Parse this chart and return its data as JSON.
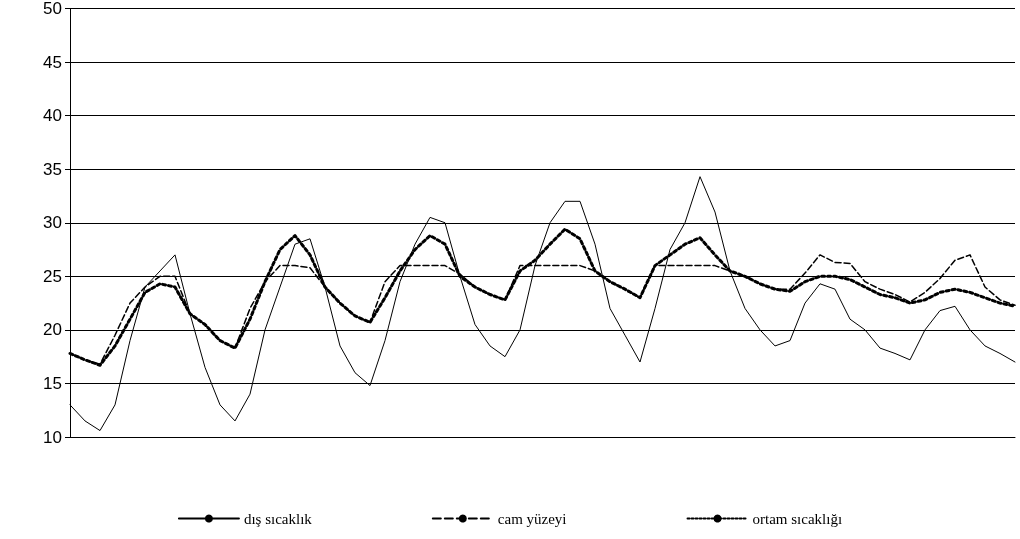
{
  "chart_data": {
    "type": "line",
    "categories": [
      null,
      null,
      null,
      null,
      null,
      null,
      null,
      null,
      null,
      null,
      null,
      null,
      null,
      null,
      null,
      null,
      null,
      null,
      null,
      null,
      null,
      null,
      null,
      null,
      null,
      null,
      null,
      null,
      null,
      null,
      null,
      null,
      null,
      null,
      null,
      null,
      null,
      null,
      null,
      null,
      null,
      null,
      null,
      null,
      null,
      null,
      null,
      null,
      null,
      null,
      null,
      null,
      null,
      null,
      null,
      null,
      null,
      null,
      null,
      null,
      null,
      null,
      null,
      null
    ],
    "ylim": [
      10,
      50
    ],
    "yticks": [
      10,
      15,
      20,
      25,
      30,
      35,
      40,
      45,
      50
    ],
    "grid": "y",
    "legend": "bottom",
    "marker": "none",
    "tick_labels": "y",
    "series": [
      {
        "name": "dış sıcaklık",
        "color": "#000000",
        "line_style": "solid",
        "values": [
          13,
          11.5,
          10.6,
          13,
          19,
          24,
          25.5,
          27,
          21.5,
          16.5,
          13,
          11.5,
          14,
          20,
          24,
          28,
          28.5,
          24,
          18.5,
          16,
          14.8,
          19,
          24.5,
          28,
          30.5,
          30,
          25,
          20.5,
          18.5,
          17.5,
          20,
          26,
          30,
          32,
          32,
          28,
          22,
          19.5,
          17,
          22,
          27.5,
          30,
          34.3,
          31,
          25.5,
          22,
          20,
          18.5,
          19,
          22.5,
          24.3,
          23.8,
          21,
          20,
          18.3,
          17.8,
          17.2,
          20,
          21.8,
          22.2,
          20,
          18.5,
          17.8,
          17
        ]
      },
      {
        "name": "cam yüzeyi",
        "color": "#000000",
        "line_style": "dashed",
        "values": [
          17.8,
          17.2,
          16.8,
          19.5,
          22.5,
          24,
          25,
          25,
          21.5,
          20.5,
          19,
          18.3,
          22,
          24.5,
          26,
          26,
          25.8,
          24,
          22.5,
          21.3,
          20.7,
          24.5,
          26,
          26,
          26,
          26,
          25.2,
          24,
          23.3,
          22.8,
          26,
          26,
          26,
          26,
          26,
          25.5,
          24.5,
          23.8,
          23,
          26,
          26,
          26,
          26,
          26,
          25.5,
          25,
          24.3,
          23.8,
          23.8,
          25.3,
          27,
          26.3,
          26.2,
          24.5,
          23.8,
          23.3,
          22.6,
          23.5,
          24.8,
          26.5,
          27,
          24,
          22.8,
          22.3
        ]
      },
      {
        "name": "ortam sıcaklığı",
        "color": "#000000",
        "line_style": "dotted",
        "values": [
          17.8,
          17.2,
          16.7,
          18.5,
          21,
          23.5,
          24.3,
          24,
          21.5,
          20.5,
          19,
          18.3,
          21,
          24.5,
          27.5,
          28.8,
          27,
          24,
          22.5,
          21.3,
          20.7,
          23,
          25.5,
          27.5,
          28.8,
          28,
          25,
          24,
          23.3,
          22.8,
          25.5,
          26.5,
          28,
          29.4,
          28.5,
          25.5,
          24.5,
          23.8,
          23,
          26,
          27,
          28,
          28.6,
          27,
          25.5,
          25,
          24.3,
          23.8,
          23.6,
          24.5,
          25,
          25,
          24.7,
          24,
          23.3,
          23,
          22.5,
          22.8,
          23.5,
          23.8,
          23.5,
          23,
          22.5,
          22.2
        ]
      }
    ]
  }
}
